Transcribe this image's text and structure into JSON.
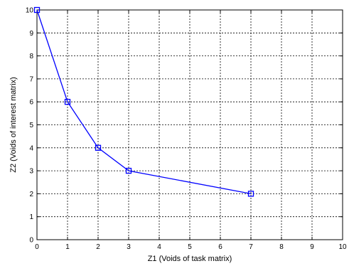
{
  "chart_data": {
    "type": "line",
    "xlabel": "Z1 (Voids of task matrix)",
    "ylabel": "Z2 (Voids of interest matrix)",
    "xlim": [
      0,
      10
    ],
    "ylim": [
      0,
      10
    ],
    "xticks": [
      "0",
      "1",
      "2",
      "3",
      "4",
      "5",
      "6",
      "7",
      "8",
      "9",
      "10"
    ],
    "yticks": [
      "0",
      "1",
      "2",
      "3",
      "4",
      "5",
      "6",
      "7",
      "8",
      "9",
      "10"
    ],
    "grid": true,
    "grid_style": "dotted",
    "marker": "square",
    "line_color": "#0000ff",
    "series": [
      {
        "x": [
          0,
          1,
          2,
          3,
          7
        ],
        "y": [
          10,
          6,
          4,
          3,
          2
        ]
      }
    ]
  }
}
